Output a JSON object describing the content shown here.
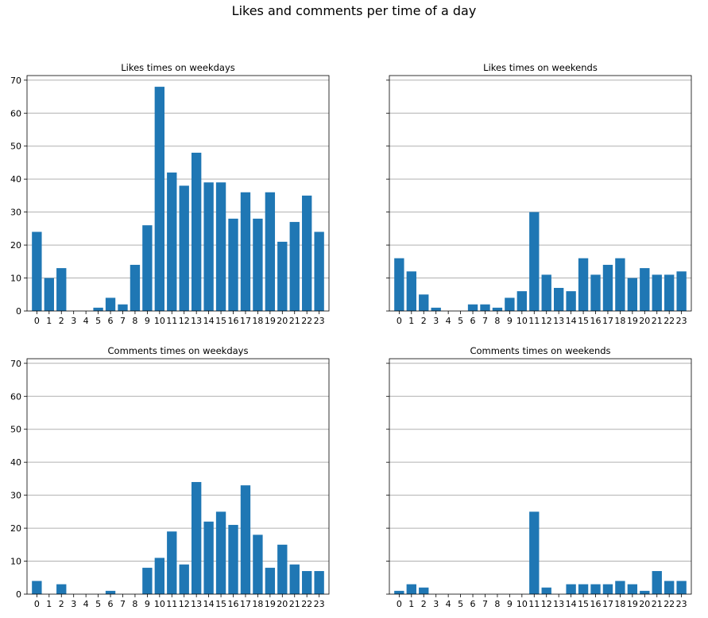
{
  "figure": {
    "suptitle": "Likes and comments per time of a day"
  },
  "style": {
    "bar_color": "#1f77b4",
    "grid_color": "#b0b0b0",
    "axis_color": "#000000"
  },
  "chart_data": [
    {
      "type": "bar",
      "title": "Likes times on weekdays",
      "xlabel": "",
      "ylabel": "",
      "ylim": [
        0,
        71.4
      ],
      "yticks": [
        0,
        10,
        20,
        30,
        40,
        50,
        60,
        70
      ],
      "grid": "y",
      "categories": [
        "0",
        "1",
        "2",
        "3",
        "4",
        "5",
        "6",
        "7",
        "8",
        "9",
        "10",
        "11",
        "12",
        "13",
        "14",
        "15",
        "16",
        "17",
        "18",
        "19",
        "20",
        "21",
        "22",
        "23"
      ],
      "values": [
        24,
        10,
        13,
        0,
        0,
        1,
        4,
        2,
        14,
        26,
        68,
        42,
        38,
        48,
        39,
        39,
        28,
        36,
        28,
        36,
        21,
        27,
        35,
        24
      ],
      "show_yticklabels": true
    },
    {
      "type": "bar",
      "title": "Likes times on weekends",
      "xlabel": "",
      "ylabel": "",
      "ylim": [
        0,
        71.4
      ],
      "yticks": [
        0,
        10,
        20,
        30,
        40,
        50,
        60,
        70
      ],
      "grid": "y",
      "categories": [
        "0",
        "1",
        "2",
        "3",
        "4",
        "5",
        "6",
        "7",
        "8",
        "9",
        "10",
        "11",
        "12",
        "13",
        "14",
        "15",
        "16",
        "17",
        "18",
        "19",
        "20",
        "21",
        "22",
        "23"
      ],
      "values": [
        16,
        12,
        5,
        1,
        0,
        0,
        2,
        2,
        1,
        4,
        6,
        30,
        11,
        7,
        6,
        16,
        11,
        14,
        16,
        10,
        13,
        11,
        11,
        12
      ],
      "show_yticklabels": false
    },
    {
      "type": "bar",
      "title": "Comments times on weekdays",
      "xlabel": "",
      "ylabel": "",
      "ylim": [
        0,
        71.4
      ],
      "yticks": [
        0,
        10,
        20,
        30,
        40,
        50,
        60,
        70
      ],
      "grid": "y",
      "categories": [
        "0",
        "1",
        "2",
        "3",
        "4",
        "5",
        "6",
        "7",
        "8",
        "9",
        "10",
        "11",
        "12",
        "13",
        "14",
        "15",
        "16",
        "17",
        "18",
        "19",
        "20",
        "21",
        "22",
        "23"
      ],
      "values": [
        4,
        0,
        3,
        0,
        0,
        0,
        1,
        0,
        0,
        8,
        11,
        19,
        9,
        34,
        22,
        25,
        21,
        33,
        18,
        8,
        15,
        9,
        7,
        7
      ],
      "show_yticklabels": true
    },
    {
      "type": "bar",
      "title": "Comments times on weekends",
      "xlabel": "",
      "ylabel": "",
      "ylim": [
        0,
        71.4
      ],
      "yticks": [
        0,
        10,
        20,
        30,
        40,
        50,
        60,
        70
      ],
      "grid": "y",
      "categories": [
        "0",
        "1",
        "2",
        "3",
        "4",
        "5",
        "6",
        "7",
        "8",
        "9",
        "10",
        "11",
        "12",
        "13",
        "14",
        "15",
        "16",
        "17",
        "18",
        "19",
        "20",
        "21",
        "22",
        "23"
      ],
      "values": [
        1,
        3,
        2,
        0,
        0,
        0,
        0,
        0,
        0,
        0,
        0,
        25,
        2,
        0,
        3,
        3,
        3,
        3,
        4,
        3,
        1,
        7,
        4,
        4
      ],
      "show_yticklabels": false
    }
  ]
}
